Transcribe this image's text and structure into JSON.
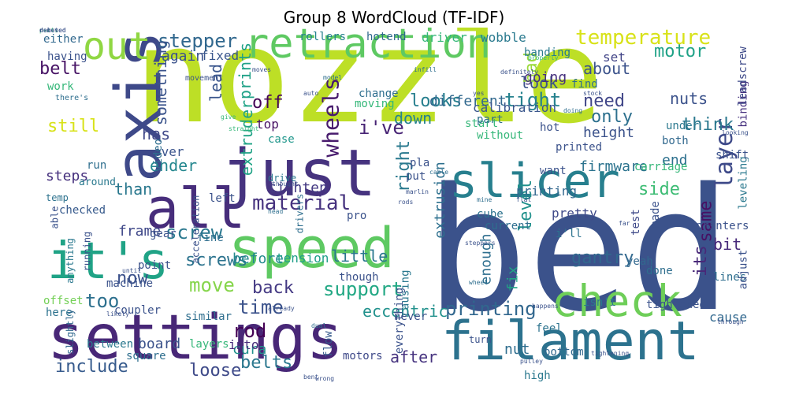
{
  "title": "Group 8 WordCloud (TF-IDF)",
  "words": [
    {
      "text": "nozzle",
      "color": "#bddf26"
    },
    {
      "text": "bed",
      "color": "#3b528b"
    },
    {
      "text": "settings",
      "color": "#482777"
    },
    {
      "text": "axis",
      "color": "#3e4989"
    },
    {
      "text": "filament",
      "color": "#2c728e"
    },
    {
      "text": "just",
      "color": "#46337f"
    },
    {
      "text": "it's",
      "color": "#20a386"
    },
    {
      "text": "speed",
      "color": "#5ec962"
    },
    {
      "text": "retraction",
      "color": "#5ec962"
    },
    {
      "text": "all",
      "color": "#472d7b"
    },
    {
      "text": "slicer",
      "color": "#277f8e"
    },
    {
      "text": "check",
      "color": "#6ece58"
    },
    {
      "text": "out",
      "color": "#90d743"
    },
    {
      "text": "temperature",
      "color": "#d8e219"
    },
    {
      "text": "material",
      "color": "#46327e"
    },
    {
      "text": "support",
      "color": "#22a884"
    },
    {
      "text": "layer",
      "color": "#3e4a89"
    },
    {
      "text": "stepper",
      "color": "#31688e"
    },
    {
      "text": "wheels",
      "color": "#481b6d"
    },
    {
      "text": "screw",
      "color": "#2a788e"
    },
    {
      "text": "printing",
      "color": "#31678e"
    },
    {
      "text": "include",
      "color": "#375b8d"
    },
    {
      "text": "loose",
      "color": "#3e4a89"
    },
    {
      "text": "belts",
      "color": "#2a778e"
    },
    {
      "text": "motor",
      "color": "#1fa287"
    },
    {
      "text": "looks",
      "color": "#277f8e"
    },
    {
      "text": "gantry",
      "color": "#31688e"
    },
    {
      "text": "i've",
      "color": "#482475"
    },
    {
      "text": "think",
      "color": "#2a788e"
    },
    {
      "text": "tight",
      "color": "#26828e"
    },
    {
      "text": "move",
      "color": "#85d54a"
    },
    {
      "text": "belt",
      "color": "#471365"
    },
    {
      "text": "off",
      "color": "#450457"
    },
    {
      "text": "too",
      "color": "#2d708e"
    },
    {
      "text": "now",
      "color": "#3b518b"
    },
    {
      "text": "back",
      "color": "#443983"
    },
    {
      "text": "time",
      "color": "#3b528b"
    },
    {
      "text": "rod",
      "color": "#440154"
    },
    {
      "text": "after",
      "color": "#46337f"
    },
    {
      "text": "prints",
      "color": "#1fa187"
    },
    {
      "text": "extruder",
      "color": "#20a386"
    },
    {
      "text": "screws",
      "color": "#2c738e"
    },
    {
      "text": "side",
      "color": "#3dbc74"
    },
    {
      "text": "same",
      "color": "#471164"
    },
    {
      "text": "about",
      "color": "#3b528b"
    },
    {
      "text": "need",
      "color": "#404688"
    },
    {
      "text": "only",
      "color": "#2d708e"
    },
    {
      "text": "ender",
      "color": "#24878e"
    },
    {
      "text": "still",
      "color": "#d8e219"
    },
    {
      "text": "down",
      "color": "#26828e"
    },
    {
      "text": "look",
      "color": "#3b528b"
    },
    {
      "text": "lead",
      "color": "#39558c"
    },
    {
      "text": "has",
      "color": "#3f4788"
    },
    {
      "text": "steps",
      "color": "#46317e"
    },
    {
      "text": "than",
      "color": "#2a788e"
    },
    {
      "text": "right",
      "color": "#29798e"
    },
    {
      "text": "level",
      "color": "#21918c"
    },
    {
      "text": "its",
      "color": "#482878"
    },
    {
      "text": "bit",
      "color": "#472a7a"
    },
    {
      "text": "had",
      "color": "#9bd93c"
    },
    {
      "text": "eccentric",
      "color": "#21918c"
    },
    {
      "text": "something",
      "color": "#3a538b"
    },
    {
      "text": "cura",
      "color": "#21918c"
    },
    {
      "text": "board",
      "color": "#3b528b"
    },
    {
      "text": "nut",
      "color": "#2e6d8e"
    },
    {
      "text": "tighten",
      "color": "#443a83"
    },
    {
      "text": "height",
      "color": "#3b528b"
    },
    {
      "text": "firmware",
      "color": "#2c738e"
    },
    {
      "text": "frame",
      "color": "#3f4889"
    },
    {
      "text": "little",
      "color": "#2a778e"
    },
    {
      "text": "before",
      "color": "#238a8d"
    },
    {
      "text": "tension",
      "color": "#1f9e89"
    },
    {
      "text": "going",
      "color": "#46307e"
    },
    {
      "text": "different",
      "color": "#31688e"
    },
    {
      "text": "nuts",
      "color": "#3b528b"
    },
    {
      "text": "end",
      "color": "#2d708e"
    },
    {
      "text": "top",
      "color": "#471164"
    },
    {
      "text": "again",
      "color": "#3b528b"
    },
    {
      "text": "fixed",
      "color": "#39568c"
    },
    {
      "text": "set",
      "color": "#414487"
    },
    {
      "text": "calibration",
      "color": "#39568c"
    },
    {
      "text": "into",
      "color": "#472c7a"
    },
    {
      "text": "over",
      "color": "#3a548c"
    },
    {
      "text": "case",
      "color": "#1f968b"
    },
    {
      "text": "cause",
      "color": "#31688e"
    },
    {
      "text": "extrusion",
      "color": "#2d708e"
    },
    {
      "text": "enough",
      "color": "#2e6e8e"
    },
    {
      "text": "fix",
      "color": "#21a685"
    },
    {
      "text": "pretty",
      "color": "#3e4989"
    },
    {
      "text": "printing",
      "color": "#31678e"
    },
    {
      "text": "hotend",
      "color": "#30698e"
    },
    {
      "text": "driver",
      "color": "#35b779"
    },
    {
      "text": "rollers",
      "color": "#26828e"
    },
    {
      "text": "wobble",
      "color": "#29798e"
    },
    {
      "text": "banding",
      "color": "#297a8e"
    },
    {
      "text": "binding",
      "color": "#46307e"
    },
    {
      "text": "leadscrew",
      "color": "#3e4a89"
    },
    {
      "text": "either",
      "color": "#31688e"
    },
    {
      "text": "having",
      "color": "#3b528b"
    },
    {
      "text": "work",
      "color": "#35b779"
    },
    {
      "text": "temp",
      "color": "#2c728e"
    },
    {
      "text": "run",
      "color": "#2e6e8e"
    },
    {
      "text": "around",
      "color": "#29798e"
    },
    {
      "text": "able",
      "color": "#3b528b"
    },
    {
      "text": "checked",
      "color": "#375a8c"
    },
    {
      "text": "anything",
      "color": "#2a788e"
    },
    {
      "text": "running",
      "color": "#3b528b"
    },
    {
      "text": "offset",
      "color": "#73d056"
    },
    {
      "text": "here",
      "color": "#2c728e"
    },
    {
      "text": "slightly",
      "color": "#31688e"
    },
    {
      "text": "between",
      "color": "#2a788e"
    },
    {
      "text": "square",
      "color": "#2e6e8e"
    },
    {
      "text": "flow",
      "color": "#375b8d"
    },
    {
      "text": "motors",
      "color": "#3e4989"
    },
    {
      "text": "bottom",
      "color": "#31688e"
    },
    {
      "text": "high",
      "color": "#2a788e"
    },
    {
      "text": "feel",
      "color": "#2c738e"
    },
    {
      "text": "turn",
      "color": "#3b528b"
    },
    {
      "text": "never",
      "color": "#3b528b"
    },
    {
      "text": "isn't",
      "color": "#2a778e"
    },
    {
      "text": "tightened",
      "color": "#3b528b"
    },
    {
      "text": "done",
      "color": "#2e6e8e"
    },
    {
      "text": "yeah",
      "color": "#31688e"
    },
    {
      "text": "i'll",
      "color": "#2c728e"
    },
    {
      "text": "test",
      "color": "#3e4989"
    },
    {
      "text": "printers",
      "color": "#3b528b"
    },
    {
      "text": "lines",
      "color": "#2e6e8e"
    },
    {
      "text": "adjust",
      "color": "#3b528b"
    },
    {
      "text": "leveling",
      "color": "#2a788e"
    },
    {
      "text": "carriage",
      "color": "#35b779"
    },
    {
      "text": "shift",
      "color": "#3b528b"
    },
    {
      "text": "both",
      "color": "#31688e"
    },
    {
      "text": "under",
      "color": "#2a788e"
    },
    {
      "text": "want",
      "color": "#3b528b"
    },
    {
      "text": "cube",
      "color": "#2c728e"
    },
    {
      "text": "pro",
      "color": "#3b528b"
    },
    {
      "text": "put",
      "color": "#3b528b"
    },
    {
      "text": "drivers",
      "color": "#2e6e8e"
    },
    {
      "text": "drive",
      "color": "#2a788e"
    },
    {
      "text": "left",
      "color": "#3b528b"
    },
    {
      "text": "video",
      "color": "#2e6e8e"
    },
    {
      "text": "acceleration",
      "color": "#3b528b"
    },
    {
      "text": "point",
      "color": "#3b528b"
    },
    {
      "text": "machine",
      "color": "#3b528b"
    },
    {
      "text": "gear",
      "color": "#3b528b"
    },
    {
      "text": "coupler",
      "color": "#3b528b"
    },
    {
      "text": "fine",
      "color": "#2e6e8e"
    },
    {
      "text": "layers",
      "color": "#35b779"
    },
    {
      "text": "similar",
      "color": "#2e6e8e"
    },
    {
      "text": "though",
      "color": "#3b528b"
    },
    {
      "text": "everything",
      "color": "#3b528b"
    },
    {
      "text": "causing",
      "color": "#2a788e"
    },
    {
      "text": "current",
      "color": "#2e6e8e"
    },
    {
      "text": "made",
      "color": "#3b528b"
    },
    {
      "text": "without",
      "color": "#35b779"
    },
    {
      "text": "printed",
      "color": "#3b528b"
    },
    {
      "text": "start",
      "color": "#35b779"
    },
    {
      "text": "hot",
      "color": "#3b528b"
    },
    {
      "text": "find",
      "color": "#2e6e8e"
    },
    {
      "text": "change",
      "color": "#2e6e8e"
    },
    {
      "text": "moving",
      "color": "#35b779"
    },
    {
      "text": "pla",
      "color": "#3b528b"
    },
    {
      "text": "part",
      "color": "#2e6e8e"
    },
    {
      "text": "yes",
      "color": "#3b528b"
    },
    {
      "text": "model",
      "color": "#2e6e8e"
    },
    {
      "text": "definitely",
      "color": "#3b528b"
    },
    {
      "text": "infill",
      "color": "#2e6e8e"
    },
    {
      "text": "there's",
      "color": "#2e6e8e"
    },
    {
      "text": "movement",
      "color": "#3b528b"
    },
    {
      "text": "auto",
      "color": "#3b528b"
    },
    {
      "text": "moves",
      "color": "#3b528b"
    },
    {
      "text": "properly",
      "color": "#35b779"
    },
    {
      "text": "doing",
      "color": "#2e6e8e"
    },
    {
      "text": "stock",
      "color": "#3b528b"
    },
    {
      "text": "looking",
      "color": "#3b528b"
    },
    {
      "text": "cable",
      "color": "#2e6e8e"
    },
    {
      "text": "head",
      "color": "#2e6e8e"
    },
    {
      "text": "thought",
      "color": "#3b528b"
    },
    {
      "text": "marlin",
      "color": "#3b528b"
    },
    {
      "text": "rods",
      "color": "#3b528b"
    },
    {
      "text": "mine",
      "color": "#2e6e8e"
    },
    {
      "text": "flat",
      "color": "#3b528b"
    },
    {
      "text": "far",
      "color": "#3b528b"
    },
    {
      "text": "steppers",
      "color": "#3b528b"
    },
    {
      "text": "dual",
      "color": "#2e6e8e"
    },
    {
      "text": "wheel",
      "color": "#2e6e8e"
    },
    {
      "text": "until",
      "color": "#3b528b"
    },
    {
      "text": "already",
      "color": "#3b528b"
    },
    {
      "text": "likely",
      "color": "#3b528b"
    },
    {
      "text": "bent",
      "color": "#3b528b"
    },
    {
      "text": "wrong",
      "color": "#3b528b"
    },
    {
      "text": "pulley",
      "color": "#3b528b"
    },
    {
      "text": "happens",
      "color": "#3b528b"
    },
    {
      "text": "tightening",
      "color": "#3b528b"
    },
    {
      "text": "through",
      "color": "#3b528b"
    },
    {
      "text": "give",
      "color": "#35b779"
    },
    {
      "text": "straight",
      "color": "#35b779"
    },
    {
      "text": "don",
      "color": "#3b528b"
    },
    {
      "text": "parts",
      "color": "#35b779"
    },
    {
      "text": "deleted",
      "color": "#3b528b"
    },
    {
      "text": "removed",
      "color": "#3b528b"
    }
  ]
}
